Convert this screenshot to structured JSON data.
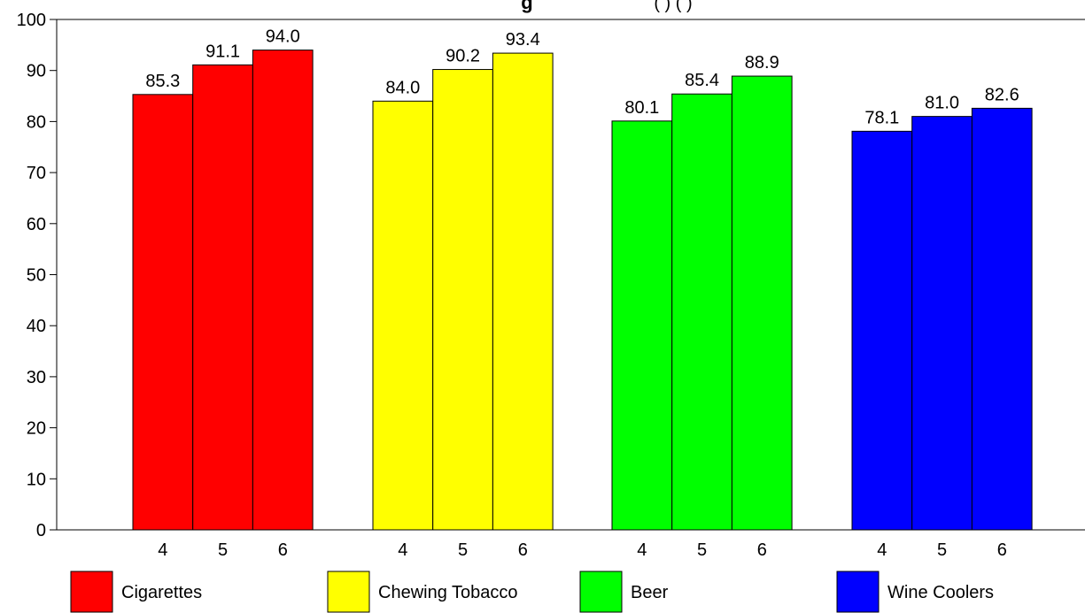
{
  "chart_data": {
    "type": "bar",
    "title": "g",
    "title_suffix": "( ) ( )",
    "ylim": [
      0,
      100
    ],
    "yticks": [
      0,
      10,
      20,
      30,
      40,
      50,
      60,
      70,
      80,
      90,
      100
    ],
    "grades": [
      "4",
      "5",
      "6"
    ],
    "groups": [
      {
        "name": "Cigarettes",
        "color": "#ff0000",
        "values": [
          85.3,
          91.1,
          94.0
        ],
        "labels": [
          "85.3",
          "91.1",
          "94.0"
        ]
      },
      {
        "name": "Chewing Tobacco",
        "color": "#ffff00",
        "values": [
          84.0,
          90.2,
          93.4
        ],
        "labels": [
          "84.0",
          "90.2",
          "93.4"
        ]
      },
      {
        "name": "Beer",
        "color": "#00ff00",
        "values": [
          80.1,
          85.4,
          88.9
        ],
        "labels": [
          "80.1",
          "85.4",
          "88.9"
        ]
      },
      {
        "name": "Wine Coolers",
        "color": "#0000ff",
        "values": [
          78.1,
          81.0,
          82.6
        ],
        "labels": [
          "78.1",
          "81.0",
          "82.6"
        ]
      }
    ],
    "grid": false,
    "legend_position": "bottom"
  }
}
